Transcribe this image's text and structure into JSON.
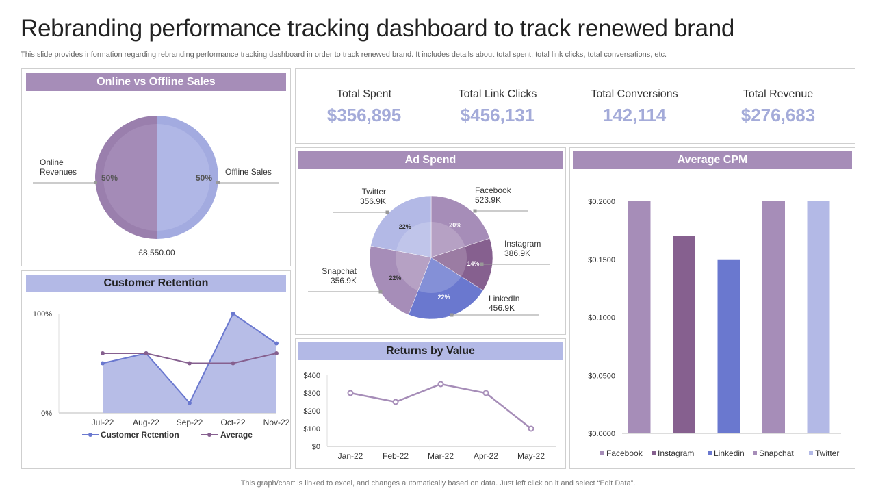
{
  "header": {
    "title": "Rebranding performance tracking dashboard to track renewed brand",
    "subtitle": "This slide provides information regarding rebranding performance tracking dashboard in order to track renewed brand. It includes details about total spent, total link clicks, total conversations, etc."
  },
  "footer": {
    "note": "This graph/chart is linked to excel,  and changes automatically based on data. Just left click on it and select “Edit Data”."
  },
  "kpis": [
    {
      "label": "Total Spent",
      "value": "$356,895"
    },
    {
      "label": "Total Link Clicks",
      "value": "$456,131"
    },
    {
      "label": "Total Conversions",
      "value": "142,114"
    },
    {
      "label": "Total Revenue",
      "value": "$276,683"
    }
  ],
  "panels": {
    "online_offline": "Online vs Offline Sales",
    "retention": "Customer Retention",
    "ad_spend": "Ad Spend",
    "returns": "Returns by Value",
    "cpm": "Average CPM"
  },
  "colors": {
    "light_purple": "#a68db8",
    "dark_purple": "#86608f",
    "blue": "#6a78cf",
    "light_blue": "#b3b9e6",
    "kpi_value": "#a4abd9"
  },
  "chart_data": [
    {
      "id": "online_offline",
      "type": "pie",
      "title": "Online vs Offline Sales",
      "slices": [
        {
          "label": "Online\nRevenues",
          "value": 50,
          "pct_label": "50%",
          "color": "#a68db8"
        },
        {
          "label": "Offline Sales",
          "value": 50,
          "pct_label": "50%",
          "color": "#b3b9e6"
        }
      ],
      "total_label": "£8,550.00"
    },
    {
      "id": "ad_spend",
      "type": "pie",
      "title": "Ad Spend",
      "slices": [
        {
          "label": "Facebook",
          "amount": "523.9K",
          "value": 20,
          "pct_label": "20%",
          "color": "#a68db8"
        },
        {
          "label": "Instagram",
          "amount": "386.9K",
          "value": 14,
          "pct_label": "14%",
          "color": "#86608f"
        },
        {
          "label": "LinkedIn",
          "amount": "456.9K",
          "value": 22,
          "pct_label": "22%",
          "color": "#6a78cf"
        },
        {
          "label": "Snapchat",
          "amount": "356.9K",
          "value": 22,
          "pct_label": "22%",
          "color": "#a68db8"
        },
        {
          "label": "Twitter",
          "amount": "356.9K",
          "value": 22,
          "pct_label": "22%",
          "color": "#b3b9e6"
        }
      ]
    },
    {
      "id": "retention",
      "type": "area",
      "title": "Customer Retention",
      "categories": [
        "Jul-22",
        "Aug-22",
        "Sep-22",
        "Oct-22",
        "Nov-22"
      ],
      "yticks": [
        "0%",
        "100%"
      ],
      "ylim": [
        0,
        100
      ],
      "series": [
        {
          "name": "Customer Retention",
          "type": "area",
          "values": [
            50,
            60,
            10,
            100,
            70
          ],
          "color": "#6a78cf"
        },
        {
          "name": "Average",
          "type": "line",
          "values": [
            60,
            60,
            50,
            50,
            60
          ],
          "color": "#86608f"
        }
      ]
    },
    {
      "id": "returns",
      "type": "line",
      "title": "Returns by Value",
      "categories": [
        "Jan-22",
        "Feb-22",
        "Mar-22",
        "Apr-22",
        "May-22"
      ],
      "yticks": [
        "$0",
        "$100",
        "$200",
        "$300",
        "$400"
      ],
      "ylim": [
        0,
        400
      ],
      "series": [
        {
          "values": [
            300,
            250,
            350,
            300,
            100
          ],
          "color": "#a68db8"
        }
      ]
    },
    {
      "id": "cpm",
      "type": "bar",
      "title": "Average CPM",
      "categories": [
        "Facebook",
        "Instagram",
        "Linkedin",
        "Snapchat",
        "Twitter"
      ],
      "values": [
        0.2,
        0.17,
        0.15,
        0.2,
        0.2
      ],
      "colors": [
        "#a68db8",
        "#86608f",
        "#6a78cf",
        "#a68db8",
        "#b3b9e6"
      ],
      "yticks": [
        "$0.0000",
        "$0.0500",
        "$0.1000",
        "$0.1500",
        "$0.2000"
      ],
      "ylim": [
        0,
        0.2
      ]
    }
  ]
}
